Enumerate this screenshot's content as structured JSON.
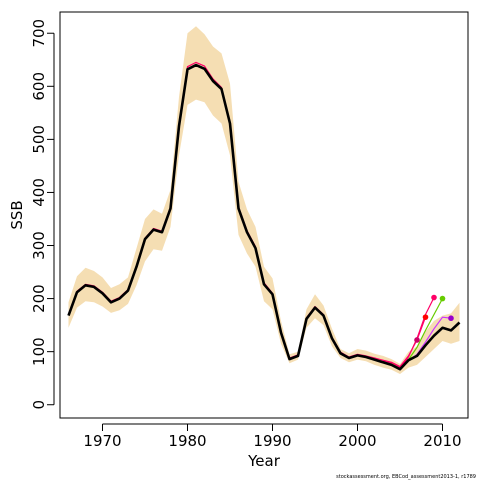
{
  "chart_data": {
    "type": "line",
    "xlabel": "Year",
    "ylabel": "SSB",
    "xlim": [
      1965,
      2013
    ],
    "ylim": [
      -25,
      740
    ],
    "x_ticks": [
      1970,
      1980,
      1990,
      2000,
      2010
    ],
    "y_ticks": [
      0,
      100,
      200,
      300,
      400,
      500,
      600,
      700
    ],
    "grid": false,
    "footer": "stockassessment.org, EBCod_assessment2013-1, r1789",
    "band_color": "#f5deb3",
    "final_color": "#000000",
    "band": {
      "x": [
        1966,
        1967,
        1968,
        1969,
        1970,
        1971,
        1972,
        1973,
        1974,
        1975,
        1976,
        1977,
        1978,
        1979,
        1980,
        1981,
        1982,
        1983,
        1984,
        1985,
        1986,
        1987,
        1988,
        1989,
        1990,
        1991,
        1992,
        1993,
        1994,
        1995,
        1996,
        1997,
        1998,
        1999,
        2000,
        2001,
        2002,
        2003,
        2004,
        2005,
        2006,
        2007,
        2008,
        2009,
        2010,
        2011,
        2012
      ],
      "lower": [
        145,
        183,
        195,
        193,
        185,
        173,
        178,
        190,
        225,
        270,
        293,
        290,
        335,
        470,
        565,
        575,
        570,
        545,
        530,
        470,
        320,
        285,
        260,
        195,
        180,
        115,
        78,
        85,
        145,
        163,
        150,
        110,
        88,
        80,
        85,
        82,
        75,
        70,
        66,
        58,
        70,
        75,
        90,
        105,
        120,
        115,
        120
      ],
      "upper": [
        193,
        242,
        258,
        252,
        240,
        220,
        227,
        240,
        295,
        350,
        368,
        360,
        405,
        580,
        700,
        713,
        698,
        675,
        662,
        605,
        420,
        368,
        335,
        260,
        238,
        158,
        95,
        100,
        180,
        208,
        187,
        143,
        105,
        97,
        105,
        102,
        96,
        92,
        86,
        77,
        100,
        110,
        138,
        158,
        168,
        172,
        192
      ]
    },
    "series": [
      {
        "color": "#000000",
        "values": [
          [
            1966,
            168
          ],
          [
            1967,
            212
          ],
          [
            1968,
            225
          ],
          [
            1969,
            222
          ],
          [
            1970,
            210
          ],
          [
            1971,
            193
          ],
          [
            1972,
            200
          ],
          [
            1973,
            215
          ],
          [
            1974,
            260
          ],
          [
            1975,
            312
          ],
          [
            1976,
            330
          ],
          [
            1977,
            325
          ],
          [
            1978,
            370
          ],
          [
            1979,
            525
          ],
          [
            1980,
            632
          ],
          [
            1981,
            640
          ],
          [
            1982,
            633
          ],
          [
            1983,
            610
          ],
          [
            1984,
            595
          ],
          [
            1985,
            530
          ],
          [
            1986,
            370
          ],
          [
            1987,
            325
          ],
          [
            1988,
            295
          ],
          [
            1989,
            227
          ],
          [
            1990,
            208
          ],
          [
            1991,
            136
          ],
          [
            1992,
            86
          ],
          [
            1993,
            92
          ],
          [
            1994,
            162
          ],
          [
            1995,
            183
          ],
          [
            1996,
            168
          ],
          [
            1997,
            125
          ],
          [
            1998,
            97
          ],
          [
            1999,
            88
          ],
          [
            2000,
            93
          ],
          [
            2001,
            90
          ],
          [
            2002,
            85
          ],
          [
            2003,
            80
          ],
          [
            2004,
            75
          ],
          [
            2005,
            67
          ],
          [
            2006,
            84
          ],
          [
            2007,
            92
          ],
          [
            2008,
            112
          ],
          [
            2009,
            130
          ],
          [
            2010,
            145
          ],
          [
            2011,
            140
          ],
          [
            2012,
            155
          ]
        ]
      },
      {
        "color": "#ff0066",
        "values": [
          [
            1966,
            170
          ],
          [
            1967,
            214
          ],
          [
            1968,
            227
          ],
          [
            1969,
            224
          ],
          [
            1970,
            212
          ],
          [
            1971,
            195
          ],
          [
            1972,
            202
          ],
          [
            1973,
            217
          ],
          [
            1974,
            262
          ],
          [
            1975,
            314
          ],
          [
            1976,
            332
          ],
          [
            1977,
            327
          ],
          [
            1978,
            372
          ],
          [
            1979,
            528
          ],
          [
            1980,
            637
          ],
          [
            1981,
            645
          ],
          [
            1982,
            638
          ],
          [
            1983,
            614
          ],
          [
            1984,
            598
          ],
          [
            1985,
            533
          ],
          [
            1986,
            373
          ],
          [
            1987,
            328
          ],
          [
            1988,
            298
          ],
          [
            1989,
            230
          ],
          [
            1990,
            210
          ],
          [
            1991,
            138
          ],
          [
            1992,
            88
          ],
          [
            1993,
            94
          ],
          [
            1994,
            164
          ],
          [
            1995,
            185
          ],
          [
            1996,
            170
          ],
          [
            1997,
            127
          ],
          [
            1998,
            99
          ],
          [
            1999,
            90
          ],
          [
            2000,
            95
          ],
          [
            2001,
            92
          ],
          [
            2002,
            88
          ],
          [
            2003,
            84
          ],
          [
            2004,
            80
          ],
          [
            2005,
            72
          ],
          [
            2006,
            92
          ],
          [
            2007,
            122
          ],
          [
            2008,
            165
          ]
        ]
      },
      {
        "color": "#ff0066",
        "values": [
          [
            2003,
            83
          ],
          [
            2004,
            78
          ],
          [
            2005,
            70
          ],
          [
            2006,
            90
          ],
          [
            2007,
            125
          ],
          [
            2008,
            170
          ],
          [
            2009,
            202
          ]
        ]
      },
      {
        "color": "#66cc00",
        "values": [
          [
            2004,
            77
          ],
          [
            2005,
            68
          ],
          [
            2006,
            85
          ],
          [
            2007,
            108
          ],
          [
            2008,
            140
          ],
          [
            2009,
            170
          ],
          [
            2010,
            200
          ]
        ]
      },
      {
        "color": "#cc33ff",
        "values": [
          [
            2005,
            67
          ],
          [
            2006,
            83
          ],
          [
            2007,
            95
          ],
          [
            2008,
            118
          ],
          [
            2009,
            143
          ],
          [
            2010,
            165
          ],
          [
            2011,
            163
          ]
        ]
      }
    ],
    "end_points": [
      {
        "x": 2007,
        "y": 122,
        "color": "#cc0066"
      },
      {
        "x": 2008,
        "y": 165,
        "color": "#ff0000"
      },
      {
        "x": 2009,
        "y": 202,
        "color": "#ff0066"
      },
      {
        "x": 2010,
        "y": 200,
        "color": "#66cc00"
      },
      {
        "x": 2011,
        "y": 163,
        "color": "#9900cc"
      }
    ]
  }
}
